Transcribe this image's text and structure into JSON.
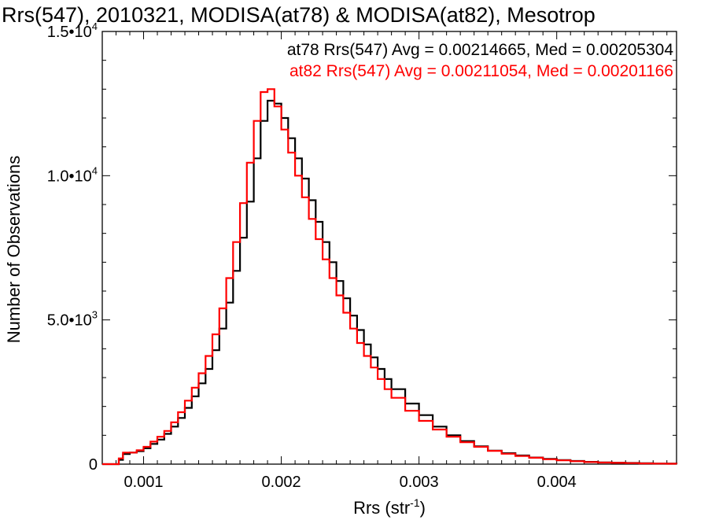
{
  "chart_data": {
    "type": "line",
    "step": true,
    "title": "Rrs(547), 2010321, MODISA(at78) & MODISA(at82), Mesotrop",
    "xlabel": "Rrs (str",
    "xlabel_sup": "-1",
    "xlabel_close": ")",
    "ylabel": "Number of Observations",
    "xlim": [
      0.0007,
      0.00487
    ],
    "ylim": [
      0,
      15000
    ],
    "grid": false,
    "x_ticks": [
      {
        "value": 0.001,
        "label": "0.001"
      },
      {
        "value": 0.002,
        "label": "0.002"
      },
      {
        "value": 0.003,
        "label": "0.003"
      },
      {
        "value": 0.004,
        "label": "0.004"
      }
    ],
    "y_ticks": [
      {
        "value": 0,
        "mant": "0",
        "exp": ""
      },
      {
        "value": 5000,
        "mant": "5.0•10",
        "exp": "3"
      },
      {
        "value": 10000,
        "mant": "1.0•10",
        "exp": "4"
      },
      {
        "value": 15000,
        "mant": "1.5•10",
        "exp": "4"
      }
    ],
    "series": [
      {
        "name": "at78",
        "color": "#000000",
        "stat_text": "at78 Rrs(547) Avg = 0.00214665, Med = 0.00205304",
        "x": [
          0.0007,
          0.0008,
          0.00082,
          0.00085,
          0.0009,
          0.00095,
          0.001,
          0.00105,
          0.0011,
          0.00115,
          0.0012,
          0.00125,
          0.0013,
          0.00135,
          0.0014,
          0.00145,
          0.0015,
          0.00155,
          0.0016,
          0.00165,
          0.0017,
          0.00175,
          0.0018,
          0.00185,
          0.0019,
          0.00195,
          0.002,
          0.00205,
          0.0021,
          0.00215,
          0.0022,
          0.00225,
          0.0023,
          0.00235,
          0.0024,
          0.00245,
          0.0025,
          0.00255,
          0.0026,
          0.00265,
          0.0027,
          0.00275,
          0.0028,
          0.0029,
          0.003,
          0.0031,
          0.0032,
          0.0033,
          0.0034,
          0.0035,
          0.0036,
          0.0037,
          0.0038,
          0.0039,
          0.004,
          0.0041,
          0.0042,
          0.0043,
          0.0044,
          0.0045,
          0.0046,
          0.0047,
          0.0048,
          0.00487
        ],
        "values": [
          0,
          0,
          150,
          350,
          400,
          450,
          550,
          700,
          850,
          1050,
          1300,
          1600,
          1950,
          2350,
          2800,
          3300,
          3950,
          4700,
          5600,
          6700,
          7850,
          9100,
          10600,
          11900,
          12600,
          12500,
          12000,
          11300,
          10600,
          9900,
          9150,
          8400,
          7700,
          7000,
          6350,
          5750,
          5150,
          4650,
          4150,
          3700,
          3300,
          2950,
          2600,
          2100,
          1700,
          1300,
          1000,
          800,
          620,
          470,
          380,
          300,
          230,
          180,
          140,
          110,
          80,
          60,
          50,
          40,
          30,
          20,
          20,
          10
        ]
      },
      {
        "name": "at82",
        "color": "#ff0000",
        "stat_text": "at82 Rrs(547) Avg = 0.00211054, Med = 0.00201166",
        "x": [
          0.0007,
          0.0008,
          0.00082,
          0.00085,
          0.0009,
          0.00095,
          0.001,
          0.00105,
          0.0011,
          0.00115,
          0.0012,
          0.00125,
          0.0013,
          0.00135,
          0.0014,
          0.00145,
          0.0015,
          0.00155,
          0.0016,
          0.00165,
          0.0017,
          0.00175,
          0.0018,
          0.00185,
          0.0019,
          0.00195,
          0.002,
          0.00205,
          0.0021,
          0.00215,
          0.0022,
          0.00225,
          0.0023,
          0.00235,
          0.0024,
          0.00245,
          0.0025,
          0.00255,
          0.0026,
          0.00265,
          0.0027,
          0.00275,
          0.0028,
          0.0029,
          0.003,
          0.0031,
          0.0032,
          0.0033,
          0.0034,
          0.0035,
          0.0036,
          0.0037,
          0.0038,
          0.0039,
          0.004,
          0.0041,
          0.0042,
          0.0043,
          0.0044,
          0.0045,
          0.0046,
          0.0047,
          0.0048,
          0.00487
        ],
        "values": [
          0,
          0,
          200,
          400,
          400,
          480,
          600,
          780,
          950,
          1150,
          1450,
          1800,
          2200,
          2650,
          3150,
          3750,
          4500,
          5400,
          6450,
          7700,
          9050,
          10450,
          11900,
          12900,
          13000,
          12400,
          11600,
          10800,
          10000,
          9250,
          8500,
          7800,
          7100,
          6450,
          5850,
          5250,
          4700,
          4200,
          3750,
          3350,
          2950,
          2600,
          2300,
          1850,
          1500,
          1200,
          950,
          760,
          600,
          460,
          360,
          280,
          220,
          170,
          130,
          100,
          70,
          55,
          45,
          35,
          25,
          20,
          15,
          10
        ]
      }
    ]
  }
}
